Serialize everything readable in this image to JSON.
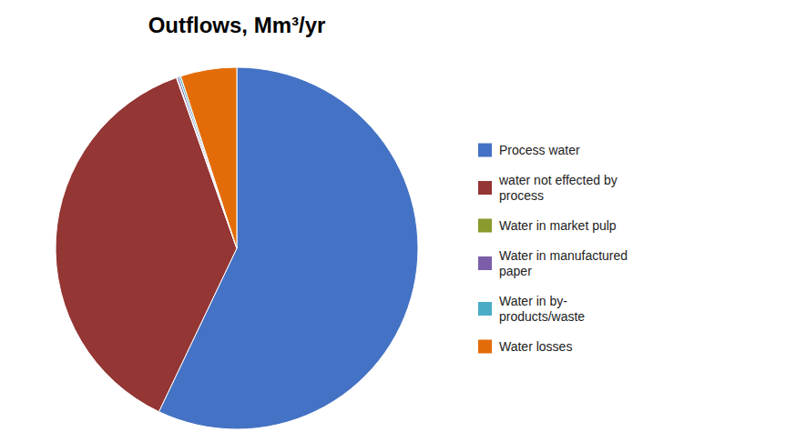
{
  "chart_data": {
    "type": "pie",
    "title": "Outflows, Mm³/yr",
    "categories": [
      "Process water",
      "water not effected by\nprocess",
      "Water in market pulp",
      "Water in manufactured\npaper",
      "Water in by-\nproducts/waste",
      "Water losses"
    ],
    "values": [
      502,
      330,
      0.6,
      1.5,
      1.5,
      44
    ],
    "colors": [
      "#4472C4",
      "#943634",
      "#8A9A2C",
      "#7B5EA7",
      "#4BACC6",
      "#E36C09"
    ],
    "legend": "right"
  }
}
